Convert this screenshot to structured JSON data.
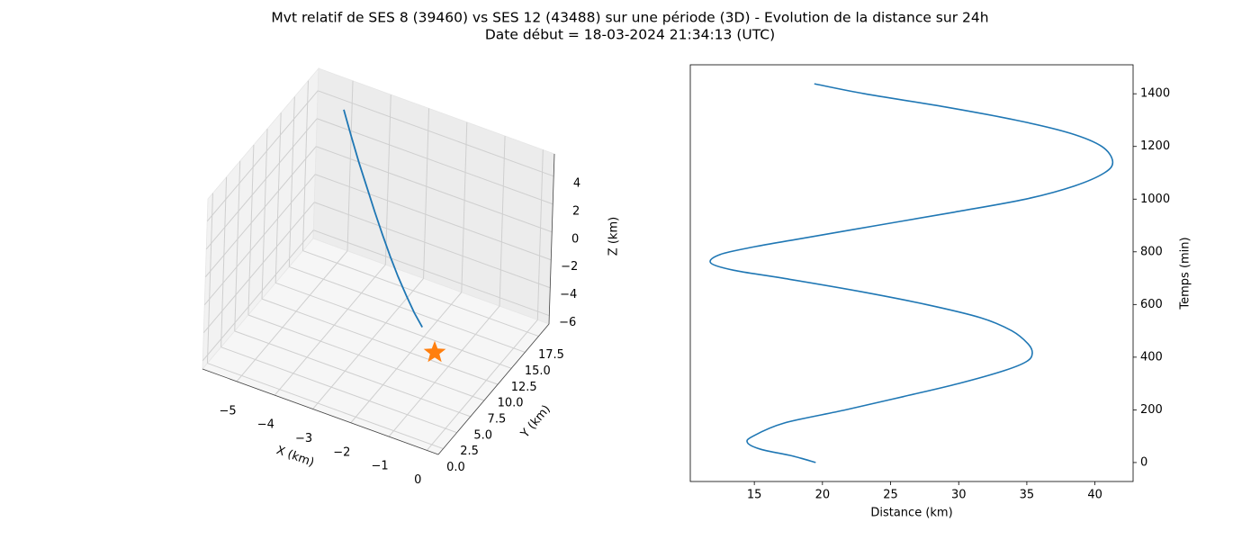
{
  "title": "Mvt relatif de SES 8 (39460) vs SES 12 (43488) sur une période (3D) - Evolution de la distance sur 24h",
  "subtitle": "Date début = 18-03-2024 21:34:13 (UTC)",
  "chart_data": [
    {
      "type": "line3d",
      "xlabel": "X (km)",
      "ylabel": "Y (km)",
      "zlabel": "Z (km)",
      "xlim": [
        -5.9,
        0.3
      ],
      "ylim": [
        -0.9,
        19.4
      ],
      "zlim": [
        -6.6,
        5.6
      ],
      "xticks": [
        {
          "value": -5,
          "label": "−5"
        },
        {
          "value": -4,
          "label": "−4"
        },
        {
          "value": -3,
          "label": "−3"
        },
        {
          "value": -2,
          "label": "−2"
        },
        {
          "value": -1,
          "label": "−1"
        },
        0
      ],
      "yticks": [
        {
          "value": 0,
          "label": "0.0"
        },
        2.5,
        {
          "value": 5,
          "label": "5.0"
        },
        7.5,
        {
          "value": 10,
          "label": "10.0"
        },
        12.5,
        {
          "value": 15,
          "label": "15.0"
        },
        17.5
      ],
      "zticks": [
        {
          "value": -6,
          "label": "−6"
        },
        {
          "value": -4,
          "label": "−4"
        },
        {
          "value": -2,
          "label": "−2"
        },
        0,
        2,
        4
      ],
      "grid": true,
      "series": [
        {
          "color": "#1f77b4",
          "marker": "none",
          "x": [
            -5.02,
            -4.65,
            -4.28,
            -3.9,
            -3.53,
            -3.16,
            -2.79,
            -2.42,
            -2.04,
            -1.67,
            -1.3
          ],
          "y": [
            18,
            16.9,
            15.8,
            14.7,
            13.6,
            12.5,
            11.4,
            10.3,
            9.2,
            8.1,
            7.0
          ],
          "z": [
            4.15,
            3.09,
            2.1,
            1.17,
            0.33,
            -0.44,
            -1.12,
            -1.7,
            -2.18,
            -2.53,
            -2.7
          ]
        },
        {
          "color": "#ff7f0e",
          "marker": "star",
          "x": [
            0
          ],
          "y": [
            0
          ],
          "z": [
            0
          ]
        }
      ]
    },
    {
      "type": "line",
      "xlabel": "Distance (km)",
      "ylabel": "Temps (min)",
      "xlim": [
        10.3,
        42.8
      ],
      "ylim": [
        -72,
        1510
      ],
      "xticks": [
        15,
        20,
        25,
        30,
        35,
        40
      ],
      "yticks": [
        0,
        200,
        400,
        600,
        800,
        1000,
        1200,
        1400
      ],
      "yaxis_side": "right",
      "grid": false,
      "series": [
        {
          "color": "#1f77b4",
          "x": [
            19.5,
            17.8,
            15.5,
            14.5,
            14.9,
            17.2,
            21.7,
            25.9,
            30.0,
            33.4,
            35.0,
            35.4,
            35.1,
            33.9,
            31.6,
            27.6,
            22.7,
            17.1,
            13.5,
            11.8,
            12.5,
            15.1,
            18.4,
            24.0,
            29.6,
            34.9,
            38.5,
            40.7,
            41.3,
            40.5,
            38.2,
            34.2,
            29.0,
            23.1,
            19.4
          ],
          "values": [
            0,
            25,
            50,
            75,
            100,
            150,
            200,
            250,
            300,
            350,
            384,
            415,
            450,
            500,
            550,
            600,
            650,
            700,
            730,
            758,
            790,
            820,
            850,
            900,
            950,
            1000,
            1050,
            1100,
            1143,
            1200,
            1250,
            1300,
            1350,
            1400,
            1438
          ]
        }
      ]
    }
  ]
}
